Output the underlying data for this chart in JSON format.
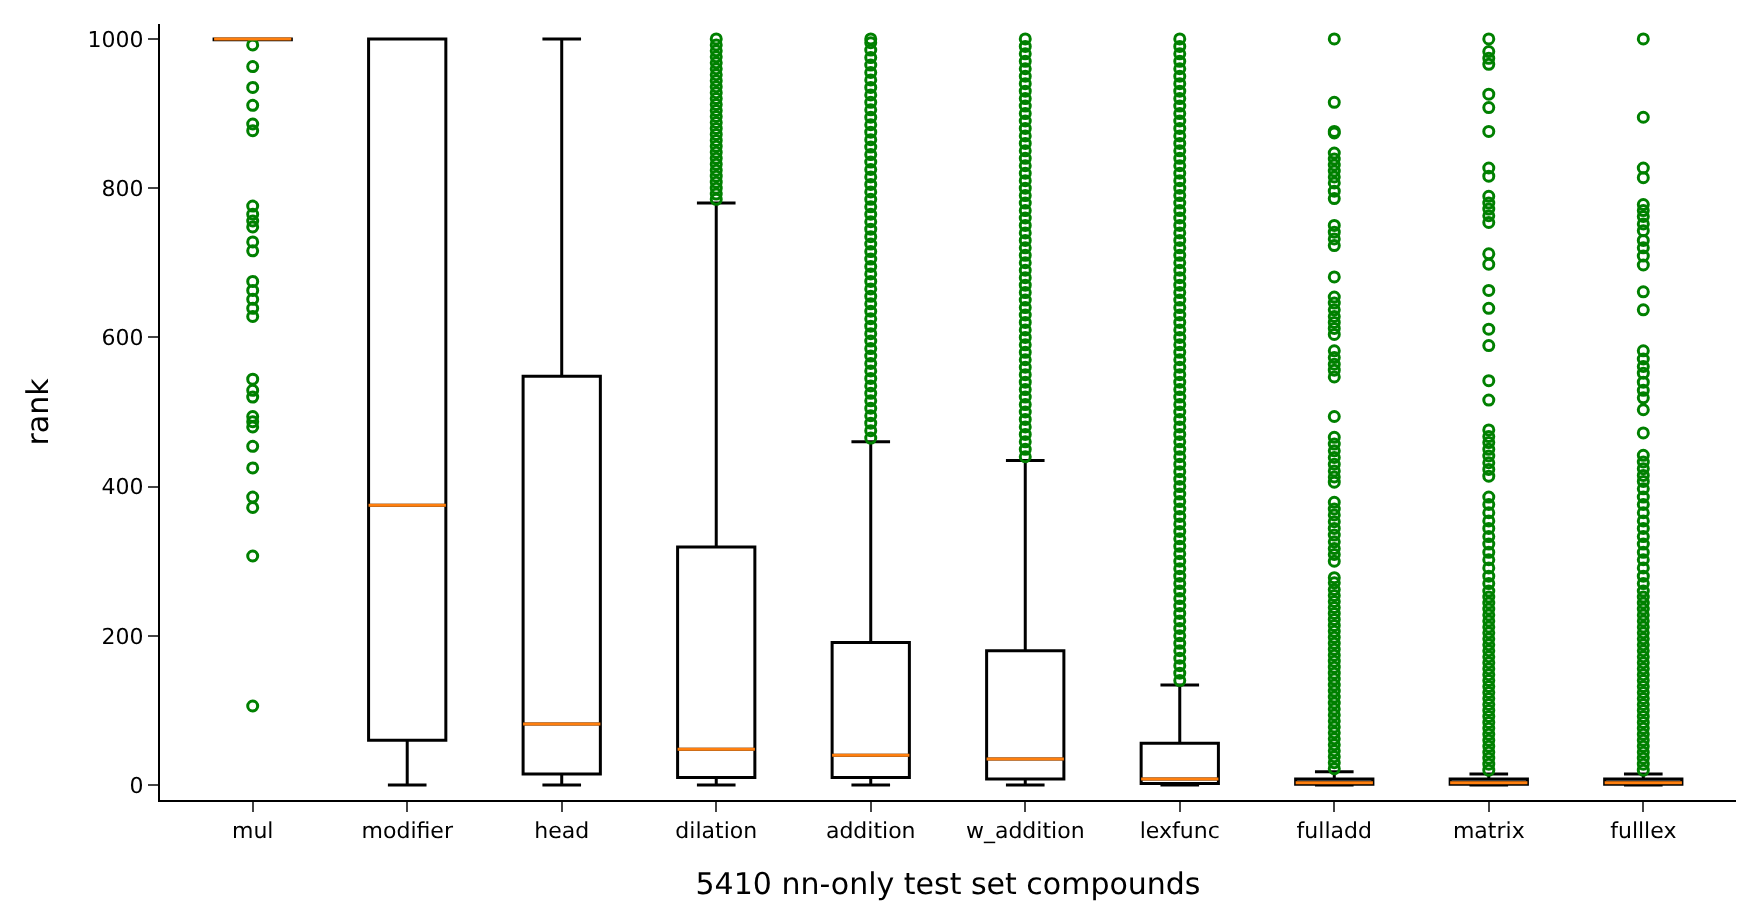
{
  "chart_data": {
    "type": "box",
    "xlabel": "5410 nn-only test set compounds",
    "ylabel": "rank",
    "categories": [
      "mul",
      "modifier",
      "head",
      "dilation",
      "addition",
      "w_addition",
      "lexfunc",
      "fulladd",
      "matrix",
      "fulllex"
    ],
    "ylim": [
      -20,
      1020
    ],
    "yticks": [
      0,
      200,
      400,
      600,
      800,
      1000
    ],
    "marker": "circle",
    "series": [
      {
        "color": "#000000",
        "boxes": [
          {
            "low": 1000,
            "q1": 999,
            "median": 1000,
            "q3": 1000,
            "high": 1000,
            "outliers": [
              992,
              963,
              935,
              911,
              886,
              877,
              776,
              765,
              756,
              748,
              728,
              716,
              675,
              663,
              651,
              639,
              628,
              544,
              529,
              520,
              494,
              487,
              480,
              454,
              425,
              386,
              372,
              307,
              106
            ]
          },
          {
            "low": 0,
            "q1": 60,
            "median": 375,
            "q3": 1000,
            "high": 1000
          },
          {
            "low": 0,
            "q1": 15,
            "median": 82,
            "q3": 548,
            "high": 1000
          },
          {
            "low": 0,
            "q1": 10,
            "median": 48,
            "q3": 319,
            "high": 780,
            "outliers": [
              785,
              792,
              800,
              808,
              816,
              824,
              832,
              840,
              848,
              856,
              864,
              872,
              880,
              888,
              896,
              904,
              912,
              920,
              928,
              936,
              944,
              952,
              960,
              968,
              976,
              984,
              992,
              1000
            ]
          },
          {
            "low": 0,
            "q1": 10,
            "median": 40,
            "q3": 191,
            "high": 460,
            "outliers": [
              465,
              475,
              485,
              495,
              505,
              515,
              525,
              535,
              545,
              555,
              565,
              575,
              585,
              595,
              605,
              615,
              625,
              635,
              645,
              655,
              665,
              675,
              685,
              695,
              705,
              715,
              725,
              735,
              745,
              755,
              765,
              775,
              785,
              795,
              805,
              815,
              825,
              835,
              845,
              855,
              865,
              875,
              885,
              895,
              905,
              915,
              925,
              935,
              945,
              955,
              965,
              975,
              985,
              995,
              1000
            ]
          },
          {
            "low": 0,
            "q1": 8,
            "median": 35,
            "q3": 180,
            "high": 435,
            "outliers": [
              440,
              450,
              460,
              470,
              480,
              490,
              500,
              510,
              520,
              530,
              540,
              550,
              560,
              570,
              580,
              590,
              600,
              610,
              620,
              630,
              640,
              650,
              660,
              670,
              680,
              690,
              700,
              710,
              720,
              730,
              740,
              750,
              760,
              770,
              780,
              790,
              800,
              810,
              820,
              830,
              840,
              850,
              860,
              870,
              880,
              890,
              900,
              910,
              920,
              930,
              940,
              950,
              960,
              970,
              980,
              990,
              1000
            ]
          },
          {
            "low": 0,
            "q1": 2,
            "median": 8,
            "q3": 56,
            "high": 134,
            "outliers": [
              140,
              150,
              160,
              170,
              180,
              190,
              200,
              210,
              220,
              230,
              240,
              250,
              260,
              270,
              280,
              290,
              300,
              310,
              320,
              330,
              340,
              350,
              360,
              370,
              380,
              390,
              400,
              410,
              420,
              430,
              440,
              450,
              460,
              470,
              480,
              490,
              500,
              510,
              520,
              530,
              540,
              550,
              560,
              570,
              580,
              590,
              600,
              610,
              620,
              630,
              640,
              650,
              660,
              670,
              680,
              690,
              700,
              710,
              720,
              730,
              740,
              750,
              760,
              770,
              780,
              790,
              800,
              810,
              820,
              830,
              840,
              850,
              860,
              870,
              880,
              890,
              900,
              910,
              920,
              930,
              940,
              950,
              960,
              970,
              980,
              990,
              1000
            ]
          },
          {
            "low": 0,
            "q1": 1,
            "median": 3,
            "q3": 8,
            "high": 18,
            "outliers": [
              22,
              30,
              38,
              46,
              54,
              62,
              70,
              78,
              86,
              94,
              102,
              110,
              118,
              126,
              134,
              142,
              150,
              158,
              166,
              174,
              182,
              190,
              198,
              206,
              214,
              222,
              230,
              238,
              246,
              254,
              262,
              271,
              278,
              300,
              309,
              317,
              326,
              335,
              344,
              353,
              362,
              370,
              379,
              406,
              413,
              421,
              430,
              439,
              448,
              457,
              466,
              494,
              547,
              556,
              564,
              573,
              582,
              604,
              612,
              620,
              628,
              637,
              646,
              654,
              681,
              723,
              732,
              741,
              750,
              786,
              796,
              807,
              815,
              823,
              831,
              839,
              847,
              874,
              876,
              915,
              1000
            ]
          },
          {
            "low": 0,
            "q1": 1,
            "median": 3,
            "q3": 8,
            "high": 15,
            "outliers": [
              20,
              28,
              36,
              44,
              52,
              60,
              68,
              76,
              84,
              92,
              100,
              108,
              116,
              124,
              132,
              140,
              148,
              156,
              164,
              172,
              180,
              188,
              196,
              204,
              212,
              220,
              228,
              236,
              244,
              252,
              260,
              270,
              280,
              291,
              302,
              312,
              323,
              333,
              344,
              354,
              365,
              376,
              386,
              414,
              423,
              432,
              441,
              450,
              459,
              467,
              476,
              516,
              542,
              589,
              611,
              639,
              663,
              698,
              712,
              754,
              763,
              772,
              780,
              789,
              816,
              827,
              876,
              908,
              926,
              966,
              974,
              983,
              1000
            ]
          },
          {
            "low": 0,
            "q1": 1,
            "median": 3,
            "q3": 8,
            "high": 15,
            "outliers": [
              20,
              28,
              36,
              44,
              52,
              60,
              68,
              76,
              84,
              92,
              100,
              108,
              116,
              124,
              132,
              140,
              148,
              156,
              164,
              172,
              180,
              188,
              196,
              204,
              212,
              220,
              228,
              236,
              244,
              252,
              260,
              270,
              280,
              291,
              302,
              312,
              323,
              333,
              344,
              354,
              365,
              376,
              386,
              397,
              407,
              415,
              424,
              433,
              442,
              472,
              503,
              519,
              529,
              540,
              552,
              561,
              571,
              582,
              637,
              661,
              697,
              709,
              720,
              730,
              743,
              752,
              762,
              770,
              778,
              814,
              827,
              895,
              1000
            ]
          }
        ]
      }
    ]
  }
}
